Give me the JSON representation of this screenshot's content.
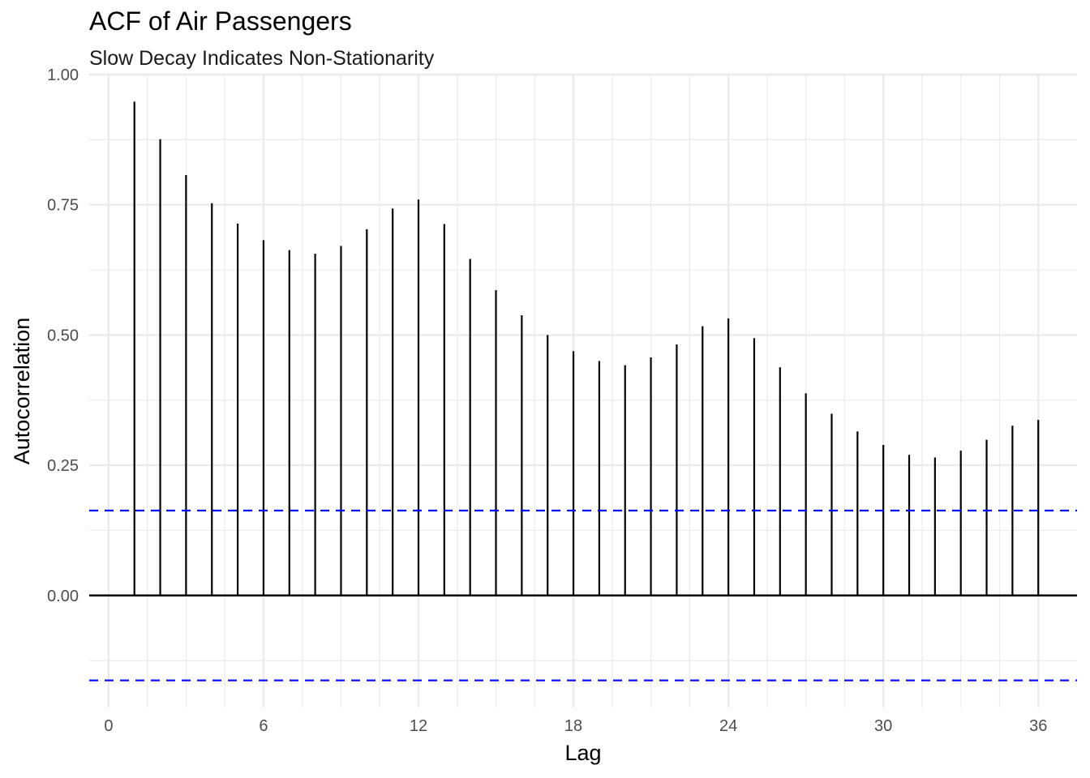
{
  "chart_data": {
    "type": "bar",
    "title": "ACF of Air Passengers",
    "subtitle": "Slow Decay Indicates Non-Stationarity",
    "xlabel": "Lag",
    "ylabel": "Autocorrelation",
    "xlim": [
      -0.75,
      37.5
    ],
    "ylim": [
      -0.215,
      1.0
    ],
    "x_ticks": [
      0,
      6,
      12,
      18,
      24,
      30,
      36
    ],
    "x_tick_labels": [
      "0",
      "6",
      "12",
      "18",
      "24",
      "30",
      "36"
    ],
    "y_ticks": [
      0.0,
      0.25,
      0.5,
      0.75,
      1.0
    ],
    "y_tick_labels": [
      "0.00",
      "0.25",
      "0.50",
      "0.75",
      "1.00"
    ],
    "grid": true,
    "lags": [
      1,
      2,
      3,
      4,
      5,
      6,
      7,
      8,
      9,
      10,
      11,
      12,
      13,
      14,
      15,
      16,
      17,
      18,
      19,
      20,
      21,
      22,
      23,
      24,
      25,
      26,
      27,
      28,
      29,
      30,
      31,
      32,
      33,
      34,
      35,
      36
    ],
    "values": [
      0.948,
      0.876,
      0.807,
      0.753,
      0.714,
      0.682,
      0.663,
      0.656,
      0.671,
      0.703,
      0.743,
      0.76,
      0.713,
      0.646,
      0.586,
      0.538,
      0.5,
      0.469,
      0.45,
      0.442,
      0.457,
      0.482,
      0.517,
      0.532,
      0.494,
      0.438,
      0.388,
      0.349,
      0.315,
      0.289,
      0.27,
      0.265,
      0.278,
      0.299,
      0.326,
      0.337
    ],
    "confidence_bound": 0.163,
    "bar_color": "#000000",
    "bound_color": "#0000ff"
  }
}
